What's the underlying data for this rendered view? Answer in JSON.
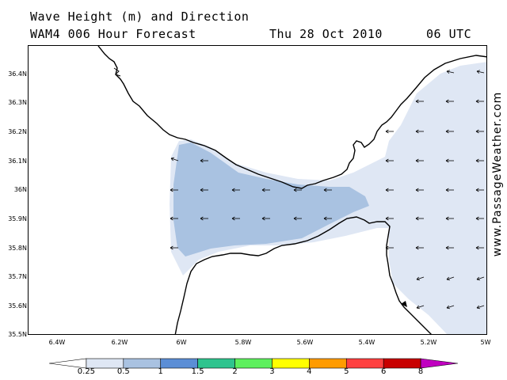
{
  "header": {
    "title_line1": "Wave Height (m) and Direction",
    "title_line2": "WAM4 006 Hour Forecast",
    "date": "Thu 28 Oct 2010",
    "utc": "06 UTC"
  },
  "axes": {
    "lat_labels": [
      "36.4N",
      "36.3N",
      "36.2N",
      "36.1N",
      "36N",
      "35.9N",
      "35.8N",
      "35.7N",
      "35.6N",
      "35.5N"
    ],
    "lon_labels": [
      "6.4W",
      "6.2W",
      "6W",
      "5.8W",
      "5.6W",
      "5.4W",
      "5.2W",
      "5W"
    ]
  },
  "watermark": "www.PassageWeather.com",
  "legend": {
    "labels": [
      "0.25",
      "0.5",
      "1",
      "1.5",
      "2",
      "3",
      "4",
      "5",
      "6",
      "8"
    ],
    "colors": [
      "#ffffff",
      "#dfe7f4",
      "#a9c2e1",
      "#5b8ed6",
      "#2ec48e",
      "#5df05d",
      "#ffff00",
      "#ff9b00",
      "#ff4040",
      "#c80000",
      "#c000c0"
    ]
  },
  "colors": {
    "light_swell": "#dfe7f4",
    "medium_swell": "#a9c2e1",
    "coastline": "#000000"
  }
}
